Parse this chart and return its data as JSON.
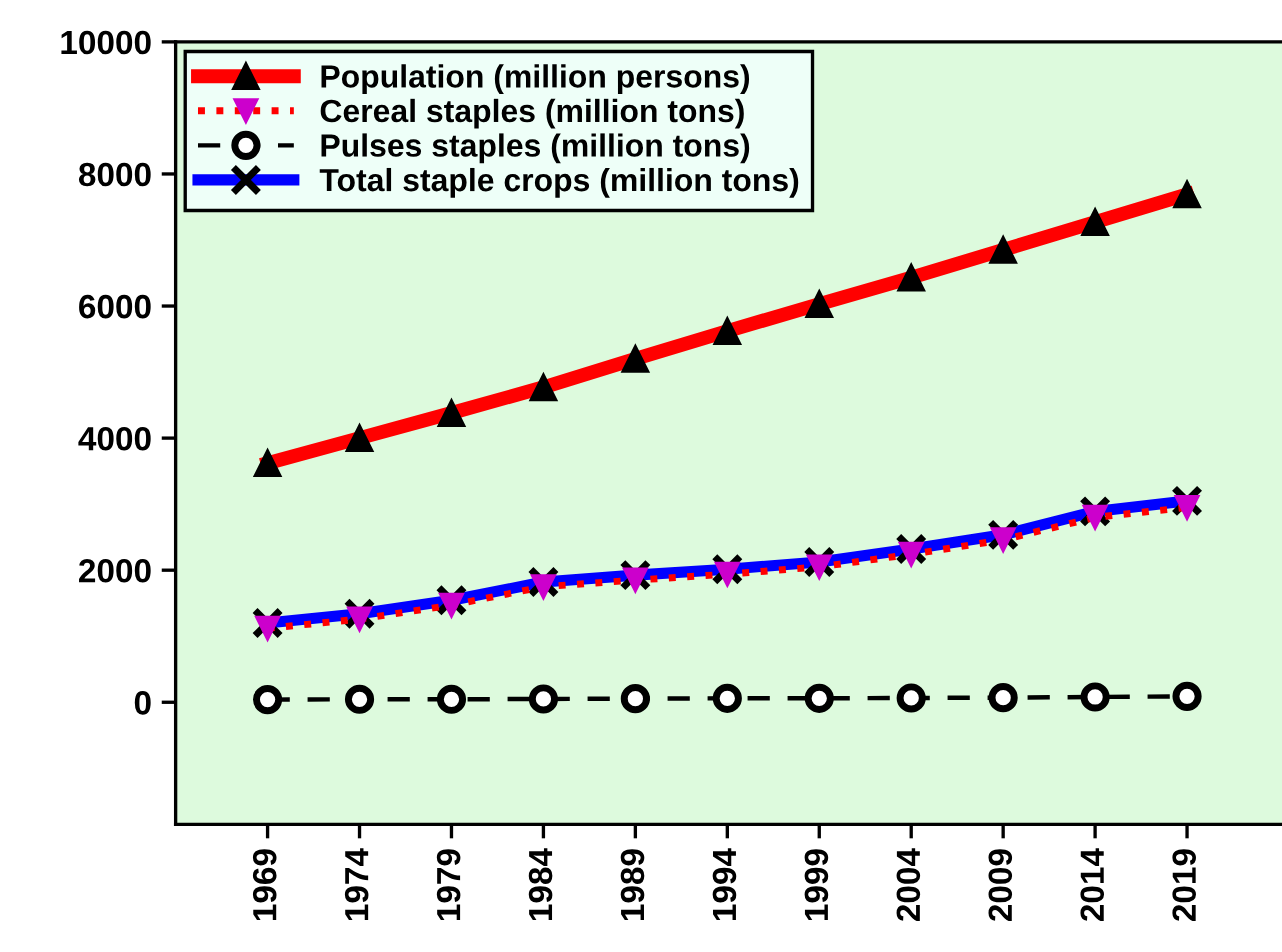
{
  "chart_data": {
    "type": "line",
    "categories": [
      "1969",
      "1974",
      "1979",
      "1984",
      "1989",
      "1994",
      "1999",
      "2004",
      "2009",
      "2014",
      "2019"
    ],
    "series": [
      {
        "name": "Population (million persons)",
        "color": "#ff0000",
        "marker": "triangle",
        "line_style": "solid",
        "values": [
          3620,
          4000,
          4380,
          4770,
          5200,
          5620,
          6030,
          6430,
          6850,
          7270,
          7690
        ]
      },
      {
        "name": "Cereal staples (million tons)",
        "color": "#ff0000",
        "marker": "triangle_down",
        "line_style": "dotted",
        "values": [
          1120,
          1260,
          1470,
          1750,
          1850,
          1940,
          2050,
          2240,
          2460,
          2800,
          2950
        ]
      },
      {
        "name": "Pulses staples (million tons)",
        "color": "#000000",
        "marker": "circle",
        "line_style": "dashed",
        "values": [
          40,
          45,
          45,
          50,
          55,
          60,
          60,
          65,
          70,
          80,
          90
        ]
      },
      {
        "name": "Total staple crops (million tons)",
        "color": "#0000ff",
        "marker": "cross",
        "line_style": "solid",
        "values": [
          1200,
          1340,
          1545,
          1820,
          1925,
          2015,
          2125,
          2320,
          2535,
          2890,
          3050
        ]
      }
    ],
    "ylim": [
      -1850,
      10000
    ],
    "yticks": [
      0,
      2000,
      4000,
      6000,
      8000,
      10000
    ],
    "grid": false,
    "legend": "top left"
  }
}
